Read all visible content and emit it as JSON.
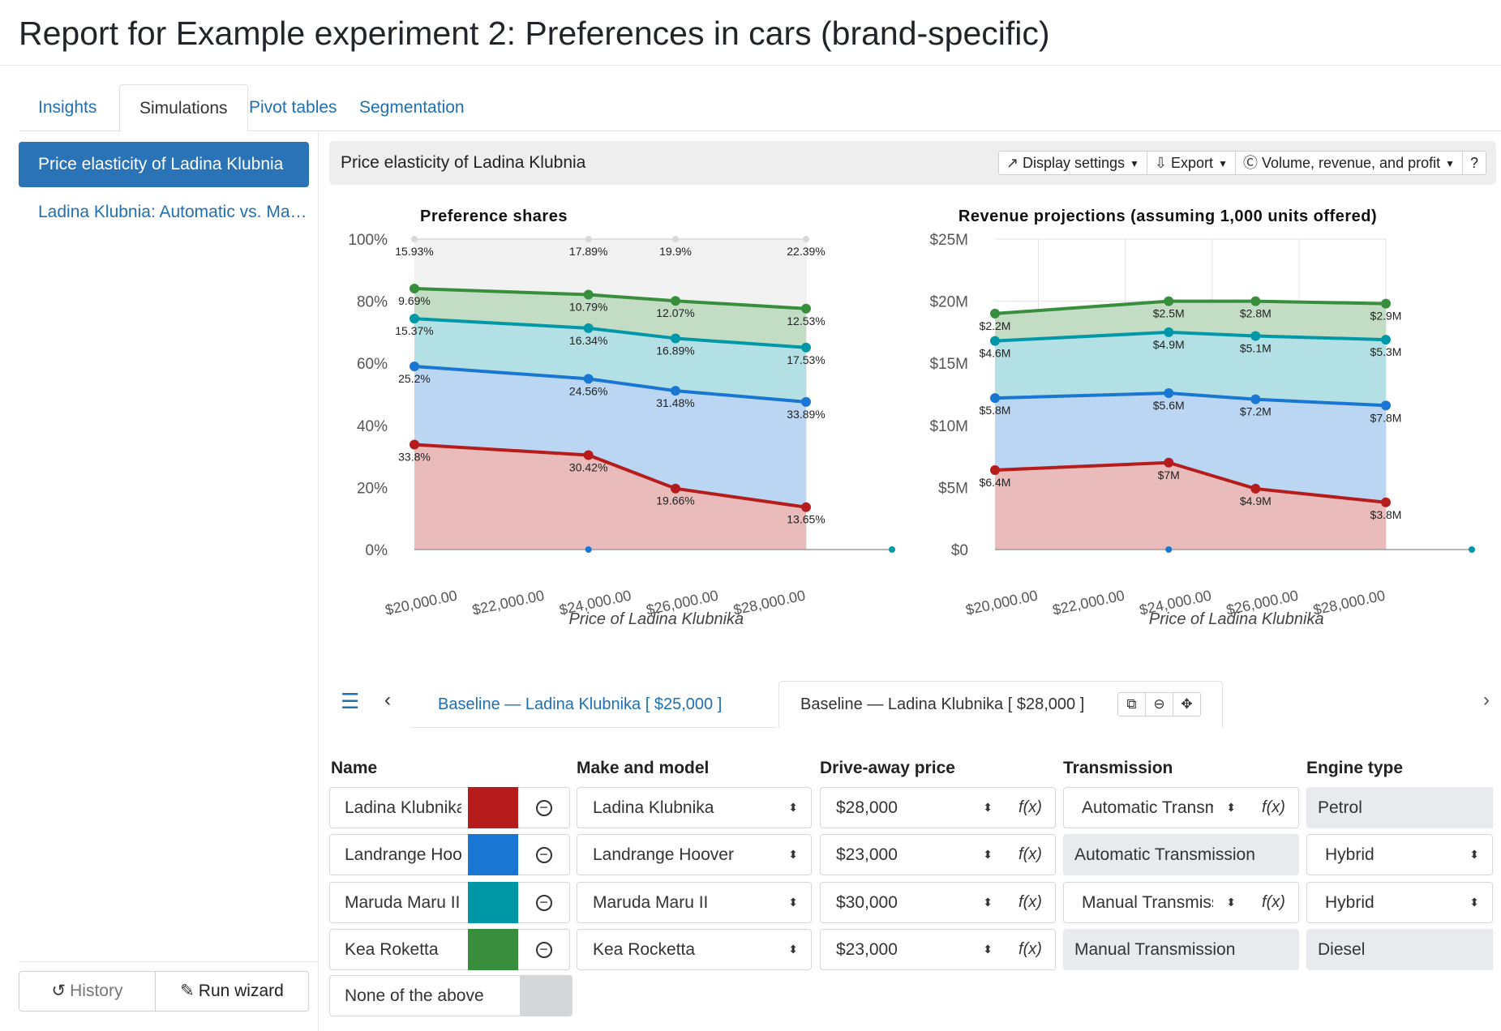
{
  "title": "Report for Example experiment 2: Preferences in cars (brand-specific)",
  "tabs": [
    "Insights",
    "Simulations",
    "Pivot tables",
    "Segmentation"
  ],
  "sidebar": {
    "items": [
      "Price elasticity of Ladina Klubnia",
      "Ladina Klubnia: Automatic vs. Manual"
    ],
    "history": "History",
    "run_wizard": "Run wizard"
  },
  "card": {
    "title": "Price elasticity of Ladina Klubnia",
    "display_settings": "Display settings",
    "export": "Export",
    "metric": "Volume, revenue, and profit"
  },
  "colors": {
    "red": "#b71c1c",
    "blue": "#1976d2",
    "teal": "#0097a7",
    "green": "#388e3c",
    "accent": "#2a73b7"
  },
  "chart_data": [
    {
      "type": "area",
      "stacked": true,
      "title": "Preference shares",
      "xlabel": "Price of Ladina Klubnika",
      "ylabel": "",
      "x": [
        19000,
        23000,
        25000,
        28000
      ],
      "xticks": [
        "$20,000.00",
        "$22,000.00",
        "$24,000.00",
        "$26,000.00",
        "$28,000.00"
      ],
      "yticks": [
        "0%",
        "20%",
        "40%",
        "60%",
        "80%",
        "100%"
      ],
      "ylim": [
        0,
        100
      ],
      "series": [
        {
          "color": "#b71c1c",
          "values": [
            33.8,
            30.42,
            19.66,
            13.65
          ],
          "labels": [
            "33.8%",
            "30.42%",
            "19.66%",
            "13.65%"
          ]
        },
        {
          "color": "#1976d2",
          "values": [
            25.2,
            24.56,
            31.48,
            33.89
          ],
          "labels": [
            "25.2%",
            "24.56%",
            "31.48%",
            "33.89%"
          ]
        },
        {
          "color": "#0097a7",
          "values": [
            15.37,
            16.34,
            16.89,
            17.53
          ],
          "labels": [
            "15.37%",
            "16.34%",
            "16.89%",
            "17.53%"
          ]
        },
        {
          "color": "#388e3c",
          "values": [
            9.69,
            10.79,
            12.07,
            12.53
          ],
          "labels": [
            "9.69%",
            "10.79%",
            "12.07%",
            "12.53%"
          ]
        },
        {
          "color": "#bdbdbd",
          "values": [
            15.93,
            17.89,
            19.9,
            22.39
          ],
          "labels": [
            "15.93%",
            "17.89%",
            "19.9%",
            "22.39%"
          ]
        }
      ],
      "grid": true
    },
    {
      "type": "area",
      "stacked": true,
      "title": "Revenue projections (assuming 1,000 units offered)",
      "xlabel": "Price of Ladina Klubnika",
      "ylabel": "",
      "x": [
        19000,
        23000,
        25000,
        28000
      ],
      "xticks": [
        "$20,000.00",
        "$22,000.00",
        "$24,000.00",
        "$26,000.00",
        "$28,000.00"
      ],
      "yticks": [
        "$0",
        "$5M",
        "$10M",
        "$15M",
        "$20M",
        "$25M"
      ],
      "ylim": [
        0,
        25
      ],
      "series": [
        {
          "color": "#b71c1c",
          "values": [
            6.4,
            7.0,
            4.9,
            3.8
          ],
          "labels": [
            "$6.4M",
            "$7M",
            "$4.9M",
            "$3.8M"
          ]
        },
        {
          "color": "#1976d2",
          "values": [
            5.8,
            5.6,
            7.2,
            7.8
          ],
          "labels": [
            "$5.8M",
            "$5.6M",
            "$7.2M",
            "$7.8M"
          ]
        },
        {
          "color": "#0097a7",
          "values": [
            4.6,
            4.9,
            5.1,
            5.3
          ],
          "labels": [
            "$4.6M",
            "$4.9M",
            "$5.1M",
            "$5.3M"
          ]
        },
        {
          "color": "#388e3c",
          "values": [
            2.2,
            2.5,
            2.8,
            2.9
          ],
          "labels": [
            "$2.2M",
            "$2.5M",
            "$2.8M",
            "$2.9M"
          ]
        }
      ],
      "grid": true
    }
  ],
  "scenarios": {
    "tab1": "Baseline — Ladina Klubnika [ $25,000 ]",
    "tab2": "Baseline — Ladina Klubnika [ $28,000 ]"
  },
  "table": {
    "headers": [
      "Name",
      "Make and model",
      "Drive-away price",
      "Transmission",
      "Engine type"
    ],
    "fx": "f(x)",
    "rows": [
      {
        "name": "Ladina Klubnika",
        "color": "#b71c1c",
        "model": "Ladina Klubnika",
        "price": "$28,000",
        "transmission": "Automatic Transmission",
        "trans_editable": true,
        "engine": "Petrol",
        "engine_editable": false
      },
      {
        "name": "Landrange Hoover",
        "color": "#1976d2",
        "model": "Landrange Hoover",
        "price": "$23,000",
        "transmission": "Automatic Transmission",
        "trans_editable": false,
        "engine": "Hybrid",
        "engine_editable": true
      },
      {
        "name": "Maruda Maru II",
        "color": "#0097a7",
        "model": "Maruda Maru II",
        "price": "$30,000",
        "transmission": "Manual Transmission",
        "trans_editable": true,
        "engine": "Hybrid",
        "engine_editable": true
      },
      {
        "name": "Kea Roketta",
        "color": "#388e3c",
        "model": "Kea Rocketta",
        "price": "$23,000",
        "transmission": "Manual Transmission",
        "trans_editable": false,
        "engine": "Diesel",
        "engine_editable": false
      }
    ],
    "none": "None of the above"
  }
}
